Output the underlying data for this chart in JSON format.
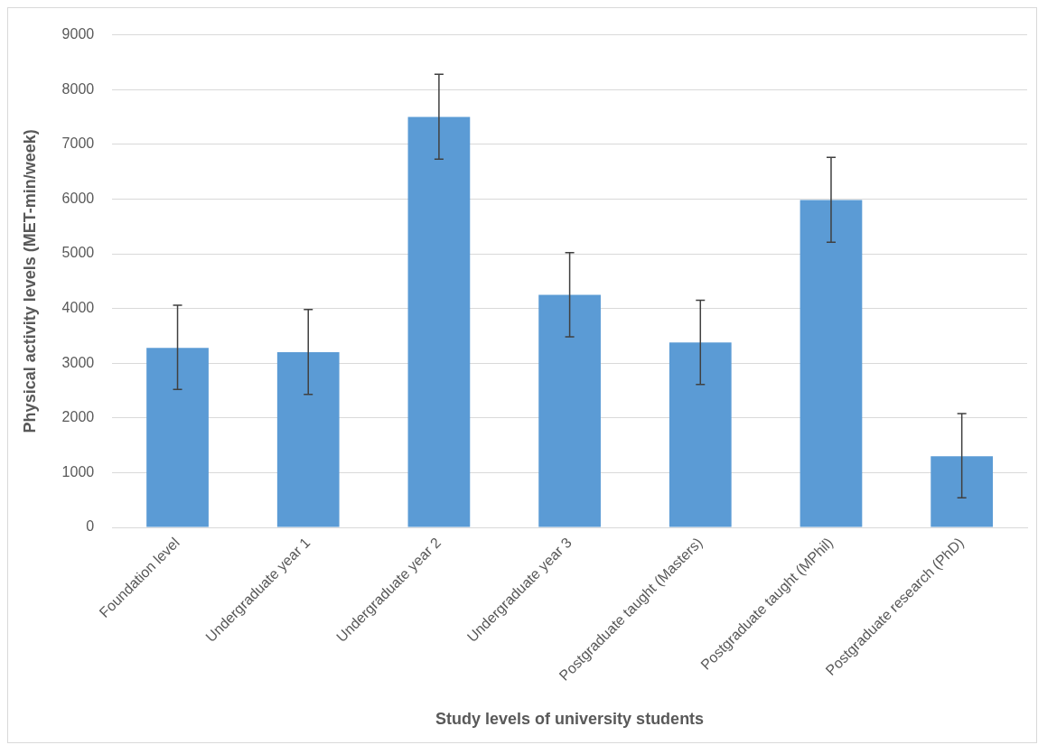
{
  "chart_data": {
    "type": "bar",
    "xlabel": "Study levels of university students",
    "ylabel": "Physical activity levels (MET-min/week)",
    "categories": [
      "Foundation level",
      "Undergraduate year 1",
      "Undergraduate year 2",
      "Undergraduate year 3",
      "Postgraduate taught (Masters)",
      "Postgraduate taught (MPhil)",
      "Postgraduate research (PhD)"
    ],
    "values": [
      3280,
      3200,
      7500,
      4250,
      3380,
      5980,
      1300
    ],
    "errors": [
      [
        2520,
        4060
      ],
      [
        2430,
        3980
      ],
      [
        6730,
        8280
      ],
      [
        3480,
        5020
      ],
      [
        2610,
        4150
      ],
      [
        5210,
        6760
      ],
      [
        540,
        2080
      ]
    ],
    "color": "#5b9bd5",
    "ylim": [
      0,
      9000
    ],
    "yticks": [
      0,
      1000,
      2000,
      3000,
      4000,
      5000,
      6000,
      7000,
      8000,
      9000
    ],
    "grid": "y"
  }
}
